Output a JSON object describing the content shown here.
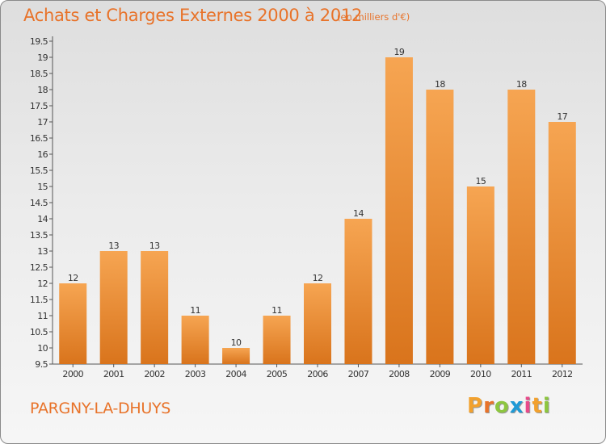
{
  "title": "Achats et Charges Externes 2000 à 2012",
  "subtitle": "(en milliers d'€)",
  "commune": "PARGNY-LA-DHUYS",
  "logo": {
    "letters": [
      "P",
      "r",
      "o",
      "x",
      "i",
      "t",
      "i"
    ],
    "colors": [
      "#f2a12e",
      "#e8732a",
      "#8dc63f",
      "#1e9ad6",
      "#e84a8a",
      "#f2a12e",
      "#8dc63f"
    ]
  },
  "colors": {
    "bar_light": "#f6a552",
    "bar_dark": "#d9741c",
    "title": "#e8732a"
  },
  "chart_data": {
    "type": "bar",
    "categories": [
      "2000",
      "2001",
      "2002",
      "2003",
      "2004",
      "2005",
      "2006",
      "2007",
      "2008",
      "2009",
      "2010",
      "2011",
      "2012"
    ],
    "values": [
      12,
      13,
      13,
      11,
      10,
      11,
      12,
      14,
      19,
      18,
      15,
      18,
      17
    ],
    "ylim": [
      9.5,
      19.5
    ],
    "yticks": [
      "9.5",
      "10",
      "10.5",
      "11",
      "11.5",
      "12",
      "12.5",
      "13",
      "13.5",
      "14",
      "14.5",
      "15",
      "15.5",
      "16",
      "16.5",
      "17",
      "17.5",
      "18",
      "18.5",
      "19",
      "19.5"
    ],
    "grid": false
  }
}
